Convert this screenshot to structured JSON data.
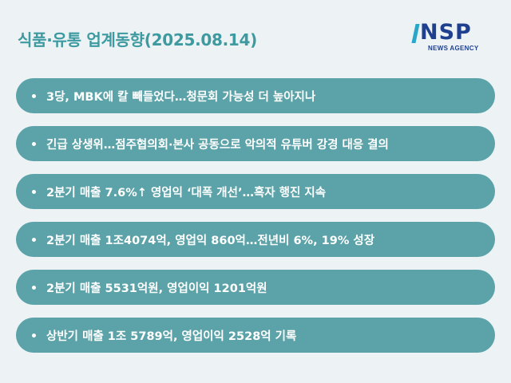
{
  "header": {
    "title": "식품·유통 업계동향(2025.08.14)"
  },
  "logo": {
    "letters": "NSP",
    "subtitle": "NEWS AGENCY"
  },
  "headlines": [
    "3당, MBK에 칼 빼들었다…청문회 가능성 더 높아지나",
    "긴급 상생위…점주협의회·본사 공동으로 악의적 유튜버 강경 대응 결의",
    "2분기 매출 7.6%↑ 영업익 ‘대폭 개선’…흑자 행진 지속",
    "2분기 매출 1조4074억, 영업익 860억…전년비 6%, 19% 성장",
    "2분기 매출 5531억원, 영업이익 1201억원",
    "상반기 매출 1조 5789억, 영업이익 2528억 기록"
  ],
  "colors": {
    "title": "#3d9aa0",
    "pill": "#5ba3a8",
    "logo": "#1f3f8f",
    "logo_accent": "#2aa6c9",
    "background": "#edf3f4"
  }
}
